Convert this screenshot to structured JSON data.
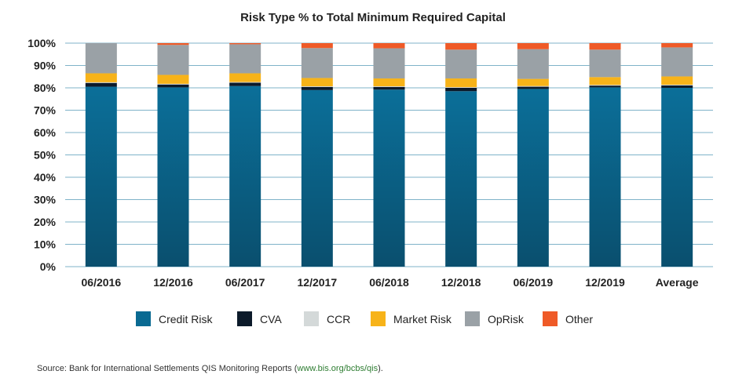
{
  "chart_data": {
    "type": "bar",
    "stacked": true,
    "title": "Risk Type % to Total Minimum Required Capital",
    "xlabel": "",
    "ylabel": "",
    "ylim": [
      0,
      100
    ],
    "yticks": [
      "0%",
      "10%",
      "20%",
      "30%",
      "40%",
      "50%",
      "60%",
      "70%",
      "80%",
      "90%",
      "100%"
    ],
    "grid": true,
    "legend_position": "bottom",
    "categories": [
      "06/2016",
      "12/2016",
      "06/2017",
      "12/2017",
      "06/2018",
      "12/2018",
      "06/2019",
      "12/2019",
      "Average"
    ],
    "series": [
      {
        "name": "Credit Risk",
        "color": "#0a6a92",
        "values": [
          80.5,
          80.2,
          80.8,
          79.0,
          79.2,
          78.5,
          79.5,
          80.2,
          80.0
        ]
      },
      {
        "name": "CVA",
        "color": "#0c1a2a",
        "values": [
          1.7,
          1.3,
          1.5,
          1.4,
          1.2,
          1.5,
          1.0,
          0.8,
          1.1
        ]
      },
      {
        "name": "CCR",
        "color": "#d4d9d9",
        "values": [
          0.3,
          0.3,
          0.3,
          0.3,
          0.3,
          0.3,
          0.3,
          0.3,
          0.3
        ]
      },
      {
        "name": "Market Risk",
        "color": "#f7b319",
        "values": [
          4.0,
          4.0,
          3.9,
          3.7,
          3.5,
          3.9,
          3.2,
          3.5,
          3.7
        ]
      },
      {
        "name": "OpRisk",
        "color": "#9aa1a6",
        "values": [
          13.5,
          13.4,
          13.0,
          13.4,
          13.5,
          12.9,
          13.3,
          12.3,
          13.0
        ]
      },
      {
        "name": "Other",
        "color": "#ef5a27",
        "values": [
          0.0,
          0.8,
          0.5,
          2.2,
          2.3,
          2.9,
          2.7,
          2.9,
          1.9
        ]
      }
    ]
  },
  "source": {
    "prefix": "Source: Bank for International Settlements QIS Monitoring Reports (",
    "link": "www.bis.org/bcbs/qis",
    "suffix": ")."
  }
}
